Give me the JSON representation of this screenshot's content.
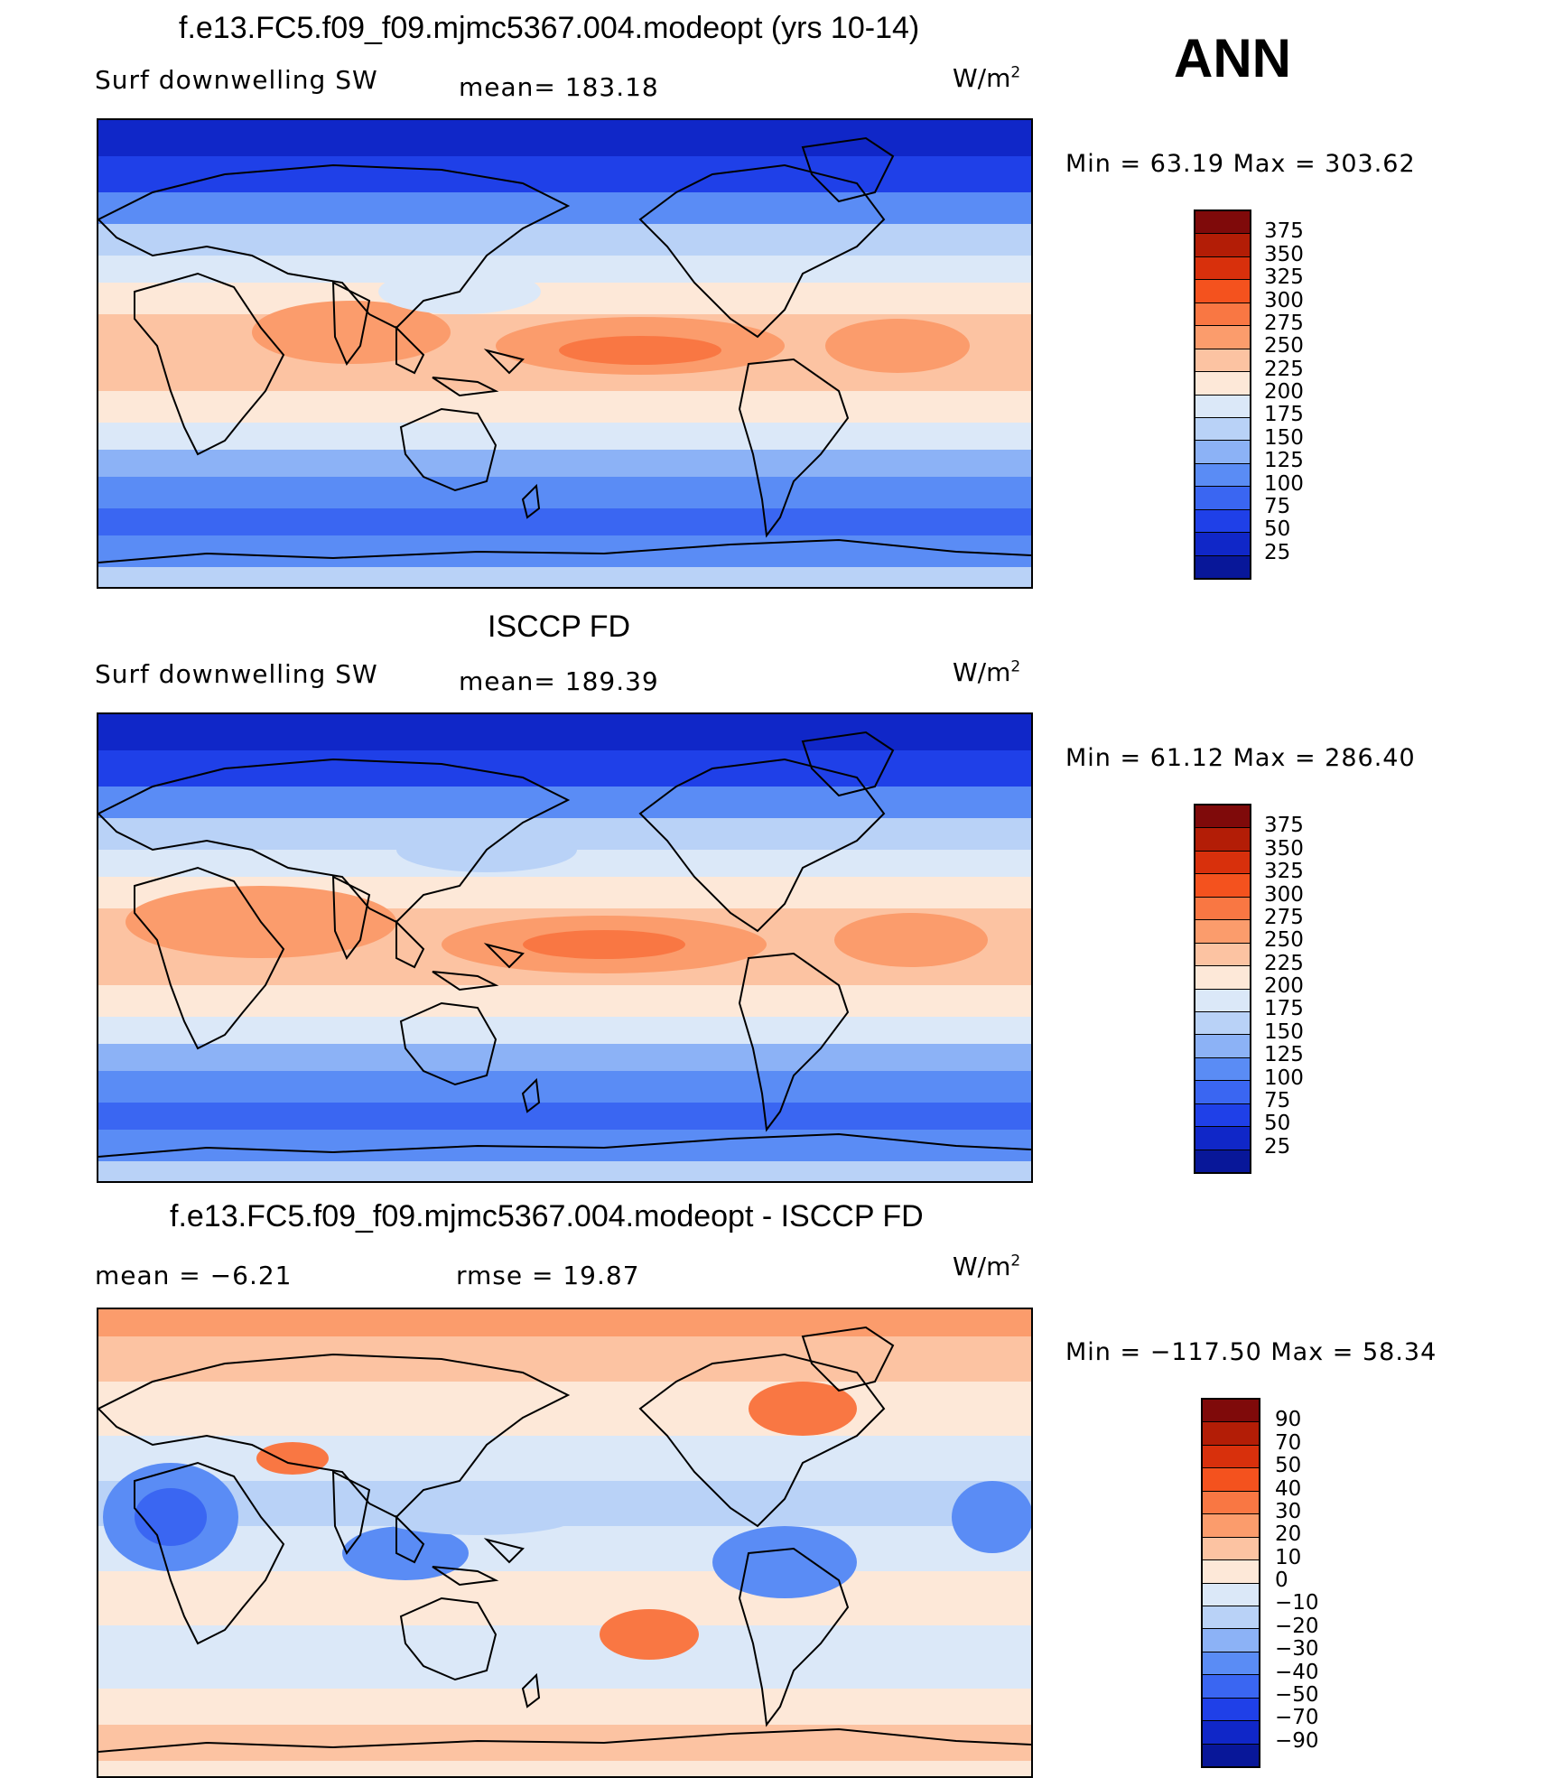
{
  "season": "ANN",
  "panels": [
    {
      "title": "f.e13.FC5.f09_f09.mjmc5367.004.modeopt (yrs 10-14)",
      "left_label": "Surf  downwelling  SW",
      "center_label": "mean=  183.18",
      "units_base": "W/m",
      "units_exp": "2",
      "minmax": "Min  =    63.19  Max  =  303.62",
      "field": "model"
    },
    {
      "title": "ISCCP FD",
      "left_label": "Surf  downwelling  SW",
      "center_label": "mean=  189.39",
      "units_base": "W/m",
      "units_exp": "2",
      "minmax": "Min  =    61.12  Max  =  286.40",
      "field": "obs"
    },
    {
      "title": "f.e13.FC5.f09_f09.mjmc5367.004.modeopt - ISCCP FD",
      "left_label": "mean  =    −6.21",
      "center_label": "rmse  =    19.87",
      "units_base": "W/m",
      "units_exp": "2",
      "minmax": "Min  = −117.50  Max  =    58.34",
      "field": "diff"
    }
  ],
  "colorbars": {
    "abs": {
      "labels": [
        "375",
        "350",
        "325",
        "300",
        "275",
        "250",
        "225",
        "200",
        "175",
        "150",
        "125",
        "100",
        "75",
        "50",
        "25"
      ],
      "colors": [
        "#7f0a0a",
        "#b31d06",
        "#d8300c",
        "#f4521e",
        "#f97743",
        "#fb9c6c",
        "#fcc3a2",
        "#fde8d8",
        "#dbe8f8",
        "#b9d2f7",
        "#8cb2f6",
        "#5a8cf5",
        "#3a66f2",
        "#1f40e8",
        "#1027c8",
        "#081799"
      ]
    },
    "diff": {
      "labels": [
        "90",
        "70",
        "50",
        "40",
        "30",
        "20",
        "10",
        "0",
        "−10",
        "−20",
        "−30",
        "−40",
        "−50",
        "−70",
        "−90"
      ],
      "colors": [
        "#7f0a0a",
        "#b31d06",
        "#d8300c",
        "#f4521e",
        "#f97743",
        "#fb9c6c",
        "#fcc3a2",
        "#fde8d8",
        "#dbe8f8",
        "#b9d2f7",
        "#8cb2f6",
        "#5a8cf5",
        "#3a66f2",
        "#1f40e8",
        "#1027c8",
        "#081799"
      ]
    }
  }
}
